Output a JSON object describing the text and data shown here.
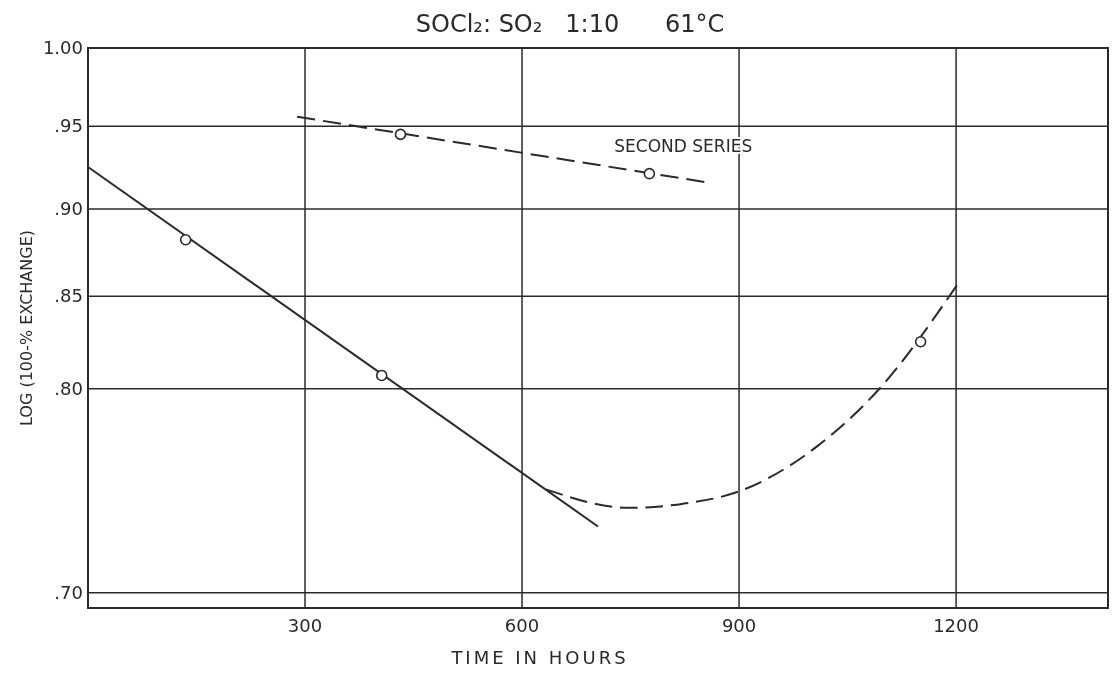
{
  "chart_data": {
    "type": "line",
    "title": "SOCl₂: SO₂   1:10      61°C",
    "xlabel": "TIME IN HOURS",
    "ylabel": "LOG (100-% EXCHANGE)",
    "log": "y",
    "grid": true,
    "xlim": [
      0,
      1410
    ],
    "xticks": [
      300,
      600,
      900,
      1200
    ],
    "ylim": [
      0.693,
      1.0
    ],
    "yticks": [
      {
        "value": 1.0,
        "label": "1.00"
      },
      {
        "value": 0.95,
        "label": ".95"
      },
      {
        "value": 0.9,
        "label": ".90"
      },
      {
        "value": 0.85,
        "label": ".85"
      },
      {
        "value": 0.8,
        "label": ".80"
      },
      {
        "value": 0.7,
        "label": ".70"
      }
    ],
    "series": [
      {
        "line_style": "solid",
        "color": "#2a2a2a",
        "x": [
          0,
          705
        ],
        "values": [
          0.925,
          0.731
        ]
      },
      {
        "name": "SECOND SERIES",
        "line_style": "dashed",
        "color": "#2a2a2a",
        "x": [
          289,
          852
        ],
        "values": [
          0.956,
          0.916
        ]
      },
      {
        "line_style": "dashed",
        "color": "#2a2a2a",
        "x": [
          633,
          747,
          823,
          900,
          1010,
          1094,
          1201
        ],
        "values": [
          0.749,
          0.74,
          0.742,
          0.748,
          0.771,
          0.8,
          0.856
        ]
      },
      {
        "type": "scatter",
        "marker": "circle",
        "color": "#2a2a2a",
        "x": [
          135,
          406,
          432,
          776,
          1151
        ],
        "values": [
          0.882,
          0.807,
          0.945,
          0.921,
          0.825
        ]
      }
    ]
  }
}
